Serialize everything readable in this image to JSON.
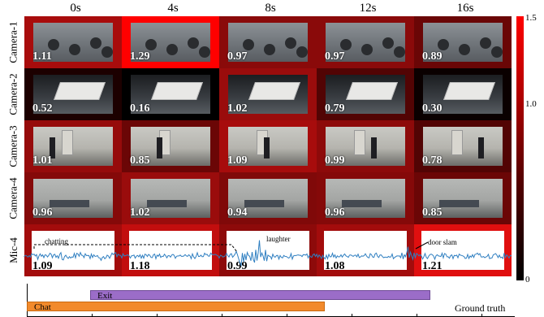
{
  "time_labels": [
    "0s",
    "4s",
    "8s",
    "12s",
    "16s"
  ],
  "rows": [
    {
      "label": "Camera-1",
      "kind": "cam1",
      "scores": [
        "1.11",
        "1.29",
        "0.97",
        "0.97",
        "0.89"
      ],
      "cell_colors": [
        "#a80c0c",
        "#ff0000",
        "#8a0a0a",
        "#8a0a0a",
        "#6a0606"
      ]
    },
    {
      "label": "Camera-2",
      "kind": "cam2",
      "scores": [
        "0.52",
        "0.16",
        "1.02",
        "0.79",
        "0.30"
      ],
      "cell_colors": [
        "#1c0000",
        "#000000",
        "#9a0c0c",
        "#520404",
        "#0a0000"
      ]
    },
    {
      "label": "Camera-3",
      "kind": "cam3",
      "scores": [
        "1.01",
        "0.85",
        "1.09",
        "0.99",
        "0.78"
      ],
      "cell_colors": [
        "#960b0b",
        "#6b0606",
        "#a70c0c",
        "#8d0a0a",
        "#520404"
      ]
    },
    {
      "label": "Camera-4",
      "kind": "cam4",
      "scores": [
        "0.96",
        "1.02",
        "0.94",
        "0.96",
        "0.85"
      ],
      "cell_colors": [
        "#850909",
        "#9a0c0c",
        "#800909",
        "#850909",
        "#6b0606"
      ]
    },
    {
      "label": "Mic-4",
      "kind": "mic",
      "scores": [
        "1.09",
        "1.18",
        "0.99",
        "1.08",
        "1.21"
      ],
      "cell_colors": [
        "#a30c0c",
        "#c20e0e",
        "#8d0a0a",
        "#a30c0c",
        "#e00f0f"
      ]
    }
  ],
  "annotations": {
    "chatting": "chatting",
    "laughter": "laughter",
    "door_slam": "door slam"
  },
  "colorbar": {
    "ticks": [
      "1.5",
      "1.0",
      "0"
    ],
    "colors": {
      "high": "#ff0000",
      "low": "#000000"
    }
  },
  "ground_truth": {
    "label": "Ground truth",
    "events": [
      {
        "name": "Exit",
        "color": "#9b6dc8"
      },
      {
        "name": "Chat",
        "color": "#f28a2c"
      }
    ]
  }
}
